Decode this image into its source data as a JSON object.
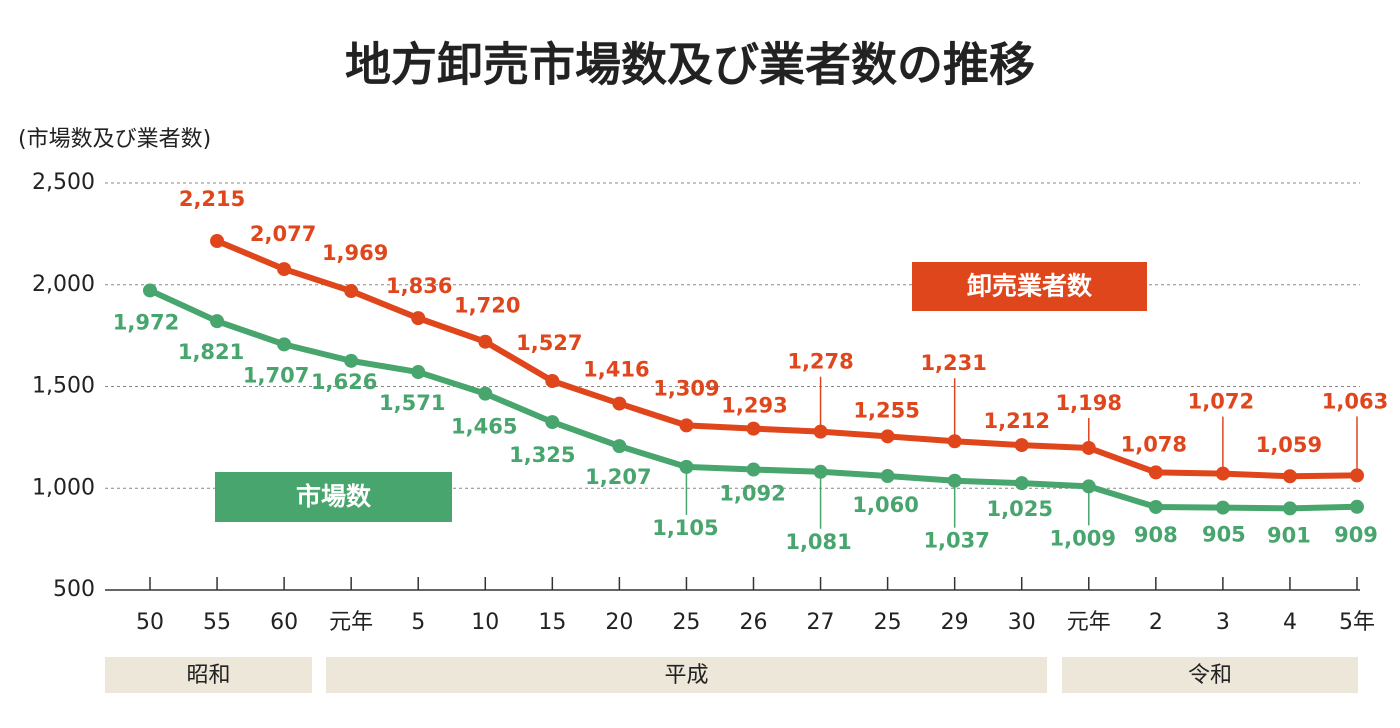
{
  "chart_data": {
    "type": "line",
    "title": "地方卸売市場数及び業者数の推移",
    "y_label": "(市場数及び業者数)",
    "categories": [
      "50",
      "55",
      "60",
      "元年",
      "5",
      "10",
      "15",
      "20",
      "25",
      "26",
      "27",
      "25",
      "29",
      "30",
      "元年",
      "2",
      "3",
      "4",
      "5年"
    ],
    "eras": [
      "昭和",
      "平成",
      "令和"
    ],
    "series": [
      {
        "name": "卸売業者数",
        "color": "#e0461c",
        "values": [
          null,
          2215,
          2077,
          1969,
          1836,
          1720,
          1527,
          1416,
          1309,
          1293,
          1278,
          1255,
          1231,
          1212,
          1198,
          1078,
          1072,
          1059,
          1063
        ],
        "value_labels": [
          null,
          "2,215",
          "2,077",
          "1,969",
          "1,836",
          "1,720",
          "1,527",
          "1,416",
          "1,309",
          "1,293",
          "1,278",
          "1,255",
          "1,231",
          "1,212",
          "1,198",
          "1,078",
          "1,072",
          "1,059",
          "1,063"
        ]
      },
      {
        "name": "市場数",
        "color": "#47a56d",
        "values": [
          1972,
          1821,
          1707,
          1626,
          1571,
          1465,
          1325,
          1207,
          1105,
          1092,
          1081,
          1060,
          1037,
          1025,
          1009,
          908,
          905,
          901,
          909
        ],
        "value_labels": [
          "1,972",
          "1,821",
          "1,707",
          "1,626",
          "1,571",
          "1,465",
          "1,325",
          "1,207",
          "1,105",
          "1,092",
          "1,081",
          "1,060",
          "1,037",
          "1,025",
          "1,009",
          "908",
          "905",
          "901",
          "909"
        ]
      }
    ],
    "ylim": [
      500,
      2500
    ],
    "yticks": [
      500,
      {
        "value": 1000,
        "label": "1,000"
      },
      {
        "value": 1500,
        "label": "1,500"
      },
      {
        "value": 2000,
        "label": "2,000"
      },
      {
        "value": 2500,
        "label": "2,500"
      }
    ],
    "grid": true
  }
}
